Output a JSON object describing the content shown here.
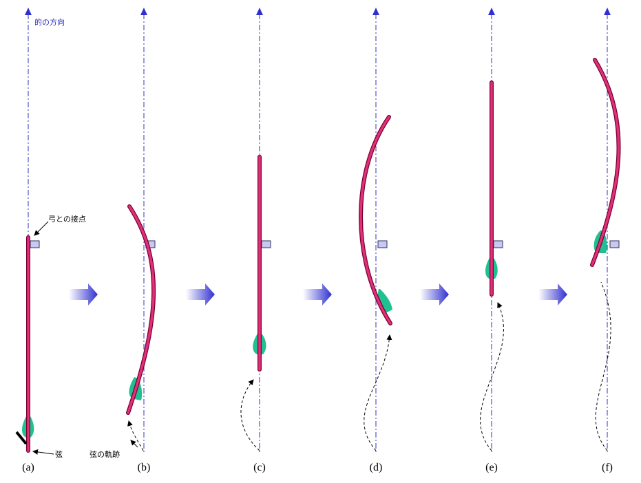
{
  "labels": {
    "target_direction": "的の方向",
    "bow_contact": "弓との接点",
    "string": "弦",
    "string_path": "弦の軌跡"
  },
  "panels": [
    "(a)",
    "(b)",
    "(c)",
    "(d)",
    "(e)",
    "(f)"
  ]
}
